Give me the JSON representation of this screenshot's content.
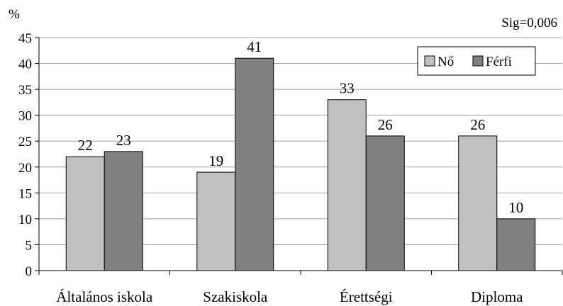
{
  "chart_data": {
    "type": "bar",
    "title": "",
    "xlabel": "",
    "ylabel": "%",
    "annotation": "Sig=0,006",
    "categories": [
      "Általános iskola",
      "Szakiskola",
      "Érettségi",
      "Diploma"
    ],
    "series": [
      {
        "name": "Nő",
        "values": [
          22,
          19,
          33,
          26
        ],
        "color": "#c0c0c0"
      },
      {
        "name": "Férfi",
        "values": [
          23,
          41,
          26,
          10
        ],
        "color": "#808080"
      }
    ],
    "ylim": [
      0,
      45
    ],
    "yticks": [
      0,
      5,
      10,
      15,
      20,
      25,
      30,
      35,
      40,
      45
    ],
    "grid": true,
    "gridColor": "#a0a0a0",
    "legend_position": "top-right"
  }
}
